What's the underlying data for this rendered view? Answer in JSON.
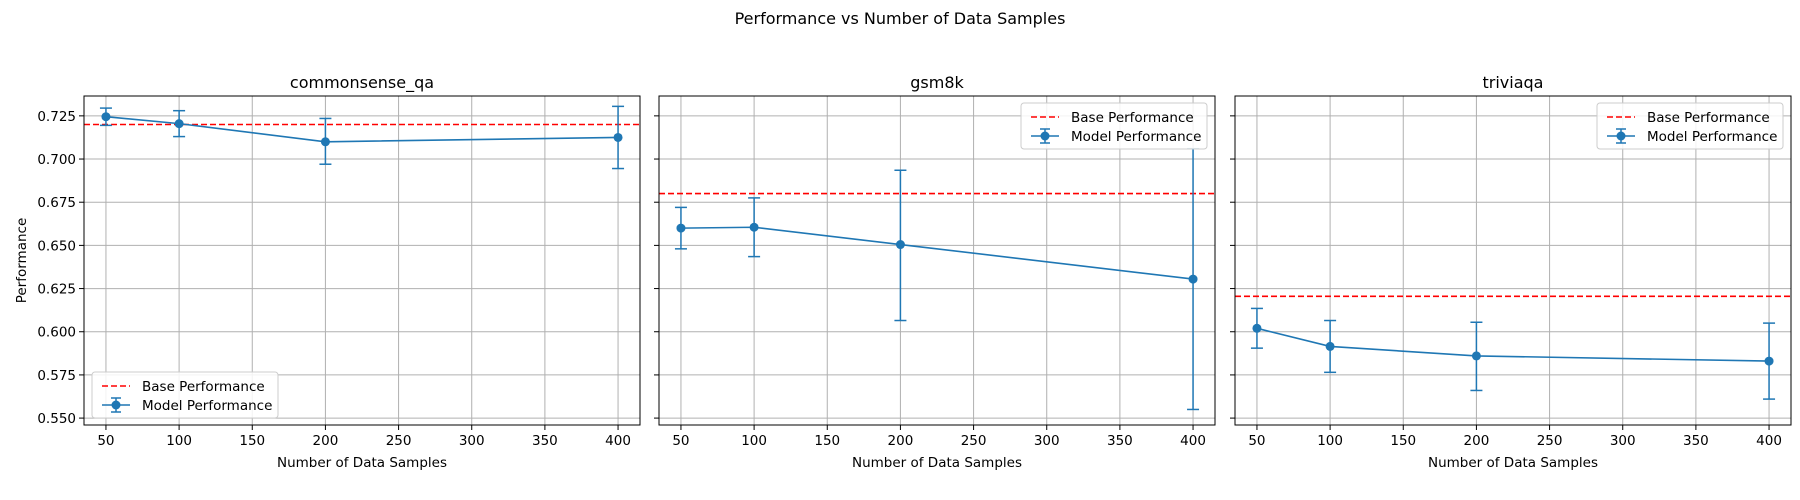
{
  "figure": {
    "title": "Performance vs Number of Data Samples"
  },
  "colors": {
    "model": "#1f77b4",
    "base": "#ff0000",
    "grid": "#b0b0b0"
  },
  "chart_data": [
    {
      "type": "line",
      "title": "commonsense_qa",
      "xlabel": "Number of Data Samples",
      "ylabel": "Performance",
      "x": [
        50,
        100,
        200,
        400
      ],
      "series": [
        {
          "name": "Model Performance",
          "values": [
            0.7245,
            0.7205,
            0.71,
            0.7125
          ],
          "error": [
            [
              0.7195,
              0.7295
            ],
            [
              0.713,
              0.728
            ],
            [
              0.697,
              0.7235
            ],
            [
              0.6945,
              0.7305
            ]
          ]
        }
      ],
      "base_performance": {
        "name": "Base Performance",
        "value": 0.72
      },
      "xlim": [
        35,
        415
      ],
      "ylim": [
        0.546,
        0.7365
      ],
      "xticks": [
        50,
        100,
        150,
        200,
        250,
        300,
        350,
        400
      ],
      "yticks": [
        0.55,
        0.575,
        0.6,
        0.625,
        0.65,
        0.675,
        0.7,
        0.725
      ],
      "ytick_labels": [
        "0.550",
        "0.575",
        "0.600",
        "0.625",
        "0.650",
        "0.675",
        "0.700",
        "0.725"
      ],
      "grid": true,
      "legend_position": "lower-left"
    },
    {
      "type": "line",
      "title": "gsm8k",
      "xlabel": "Number of Data Samples",
      "ylabel": "",
      "x": [
        50,
        100,
        200,
        400
      ],
      "series": [
        {
          "name": "Model Performance",
          "values": [
            0.66,
            0.6605,
            0.6505,
            0.6305
          ],
          "error": [
            [
              0.648,
              0.672
            ],
            [
              0.6435,
              0.6775
            ],
            [
              0.6065,
              0.6935
            ],
            [
              0.555,
              0.706
            ]
          ]
        }
      ],
      "base_performance": {
        "name": "Base Performance",
        "value": 0.68
      },
      "xlim": [
        35,
        415
      ],
      "ylim": [
        0.546,
        0.7365
      ],
      "xticks": [
        50,
        100,
        150,
        200,
        250,
        300,
        350,
        400
      ],
      "yticks": [
        0.55,
        0.575,
        0.6,
        0.625,
        0.65,
        0.675,
        0.7,
        0.725
      ],
      "ytick_labels": [],
      "grid": true,
      "legend_position": "upper-right"
    },
    {
      "type": "line",
      "title": "triviaqa",
      "xlabel": "Number of Data Samples",
      "ylabel": "",
      "x": [
        50,
        100,
        200,
        400
      ],
      "series": [
        {
          "name": "Model Performance",
          "values": [
            0.602,
            0.5915,
            0.586,
            0.583
          ],
          "error": [
            [
              0.5905,
              0.6135
            ],
            [
              0.5765,
              0.6065
            ],
            [
              0.566,
              0.6055
            ],
            [
              0.561,
              0.605
            ]
          ]
        }
      ],
      "base_performance": {
        "name": "Base Performance",
        "value": 0.6205
      },
      "xlim": [
        35,
        415
      ],
      "ylim": [
        0.546,
        0.7365
      ],
      "xticks": [
        50,
        100,
        150,
        200,
        250,
        300,
        350,
        400
      ],
      "yticks": [
        0.55,
        0.575,
        0.6,
        0.625,
        0.65,
        0.675,
        0.7,
        0.725
      ],
      "ytick_labels": [],
      "grid": true,
      "legend_position": "upper-right"
    }
  ]
}
